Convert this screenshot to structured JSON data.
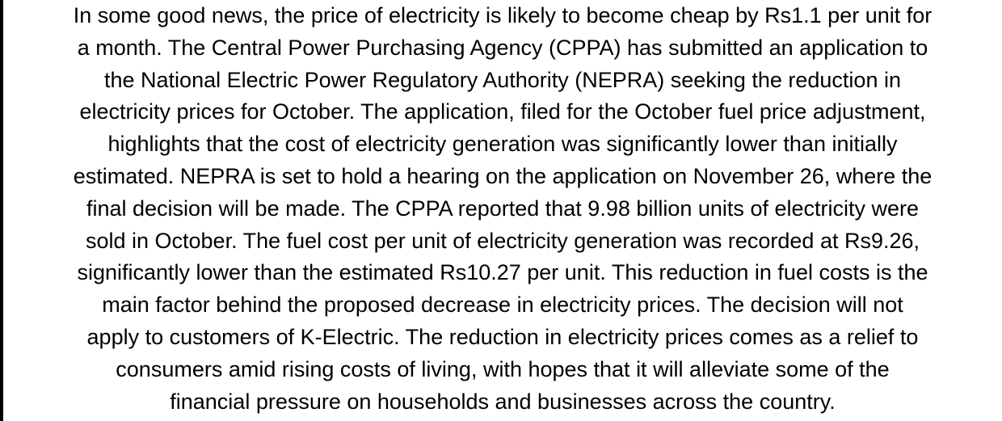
{
  "article": {
    "lines": [
      "In some good news, the price of electricity is likely to become cheap by Rs1.1 per unit for",
      "a month. The Central Power Purchasing Agency (CPPA) has submitted an application to",
      "the National Electric Power Regulatory Authority (NEPRA) seeking the reduction in",
      "electricity prices for October. The application, filed for the October fuel price adjustment,",
      "highlights that the cost of electricity generation was significantly lower than initially",
      "estimated. NEPRA is set to hold a hearing on the application on November 26, where the",
      "final decision will be made. The CPPA reported that 9.98 billion units of electricity were",
      "sold in October. The fuel cost per unit of electricity generation was recorded at Rs9.26,",
      "significantly lower than the estimated Rs10.27 per unit. This reduction in fuel costs is the",
      "main factor behind the proposed decrease in electricity prices. The decision will not",
      "apply to customers of K-Electric. The reduction in electricity prices comes as a relief to",
      "consumers amid rising costs of living, with hopes that it will alleviate some of the",
      "financial pressure on households and businesses across the country."
    ]
  }
}
